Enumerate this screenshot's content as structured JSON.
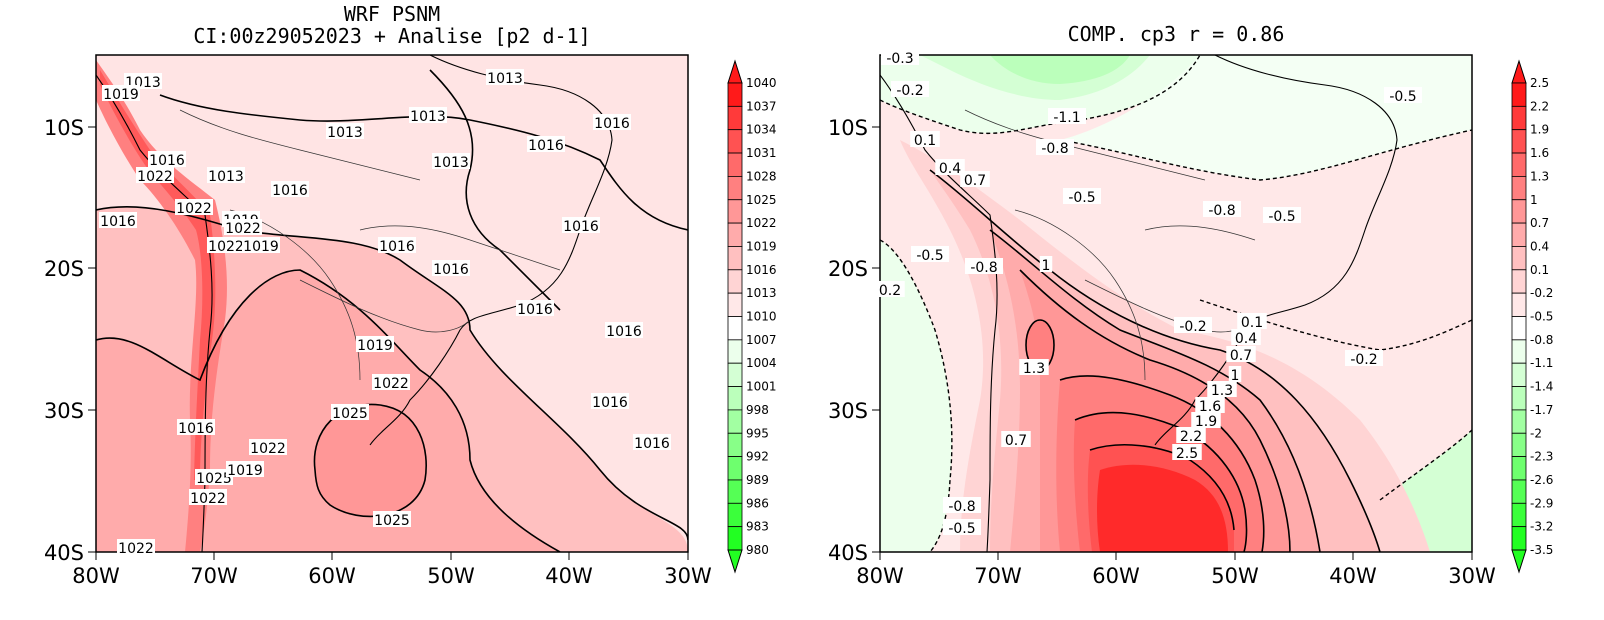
{
  "left_map": {
    "title_line1": "WRF PSNM",
    "title_line2": "CI:00z29052023 + Analise  [p2 d-1]",
    "x_ticks": [
      "80W",
      "70W",
      "60W",
      "50W",
      "40W",
      "30W"
    ],
    "y_ticks": [
      "10S",
      "20S",
      "30S",
      "40S"
    ],
    "colorbar": [
      "1040",
      "1037",
      "1034",
      "1031",
      "1028",
      "1025",
      "1022",
      "1019",
      "1016",
      "1013",
      "1010",
      "1007",
      "1004",
      "1001",
      "998",
      "995",
      "992",
      "989",
      "986",
      "983",
      "980"
    ],
    "colorbar_colors": [
      "#ff1a1a",
      "#ff3a3a",
      "#ff5252",
      "#ff6a6a",
      "#ff8080",
      "#ff9797",
      "#ffabab",
      "#ffc0c0",
      "#ffd4d4",
      "#ffe8e8",
      "#ffffff",
      "#ecffec",
      "#d4ffd4",
      "#bbffbb",
      "#a2ffa2",
      "#88ff88",
      "#6eff6e",
      "#55ff55",
      "#3bff3b",
      "#22ff22"
    ],
    "contour_labels": [
      {
        "text": "1013"
      },
      {
        "text": "1019"
      },
      {
        "text": "1016"
      },
      {
        "text": "1022"
      },
      {
        "text": "1013"
      },
      {
        "text": "1016"
      },
      {
        "text": "1013"
      },
      {
        "text": "1013"
      },
      {
        "text": "1013"
      },
      {
        "text": "1016"
      },
      {
        "text": "1016"
      },
      {
        "text": "1013"
      },
      {
        "text": "1022"
      },
      {
        "text": "1019"
      },
      {
        "text": "1022"
      },
      {
        "text": "1022"
      },
      {
        "text": "1019"
      },
      {
        "text": "1016"
      },
      {
        "text": "1016"
      },
      {
        "text": "1016"
      },
      {
        "text": "1016"
      },
      {
        "text": "1016"
      },
      {
        "text": "1016"
      },
      {
        "text": "1019"
      },
      {
        "text": "1022"
      },
      {
        "text": "1025"
      },
      {
        "text": "1016"
      },
      {
        "text": "1022"
      },
      {
        "text": "1025"
      },
      {
        "text": "1019"
      },
      {
        "text": "1022"
      },
      {
        "text": "1025"
      },
      {
        "text": "1022"
      },
      {
        "text": "1016"
      },
      {
        "text": "1016"
      }
    ]
  },
  "right_map": {
    "title": "COMP. cp3  r =  0.86",
    "x_ticks": [
      "80W",
      "70W",
      "60W",
      "50W",
      "40W",
      "30W"
    ],
    "y_ticks": [
      "10S",
      "20S",
      "30S",
      "40S"
    ],
    "colorbar": [
      "2.5",
      "2.2",
      "1.9",
      "1.6",
      "1.3",
      "1",
      "0.7",
      "0.4",
      "0.1",
      "-0.2",
      "-0.5",
      "-0.8",
      "-1.1",
      "-1.4",
      "-1.7",
      "-2",
      "-2.3",
      "-2.6",
      "-2.9",
      "-3.2",
      "-3.5"
    ],
    "colorbar_colors": [
      "#ff1a1a",
      "#ff3a3a",
      "#ff5252",
      "#ff6a6a",
      "#ff8080",
      "#ff9797",
      "#ffabab",
      "#ffc0c0",
      "#ffd4d4",
      "#ffe8e8",
      "#ffffff",
      "#ecffec",
      "#d4ffd4",
      "#bbffbb",
      "#a2ffa2",
      "#88ff88",
      "#6eff6e",
      "#55ff55",
      "#3bff3b",
      "#22ff22"
    ],
    "contour_labels": [
      {
        "text": "-0.3"
      },
      {
        "text": "-0.2"
      },
      {
        "text": "-1.1"
      },
      {
        "text": "-0.5"
      },
      {
        "text": "0.1"
      },
      {
        "text": "-0.8"
      },
      {
        "text": "0.4"
      },
      {
        "text": "0.7"
      },
      {
        "text": "-0.5"
      },
      {
        "text": "-0.8"
      },
      {
        "text": "-0.5"
      },
      {
        "text": "-0.5"
      },
      {
        "text": "-0.8"
      },
      {
        "text": "1"
      },
      {
        "text": "0.2"
      },
      {
        "text": "-0.2"
      },
      {
        "text": "0.1"
      },
      {
        "text": "0.4"
      },
      {
        "text": "0.7"
      },
      {
        "text": "-0.2"
      },
      {
        "text": "1.3"
      },
      {
        "text": "1"
      },
      {
        "text": "1.3"
      },
      {
        "text": "1.6"
      },
      {
        "text": "1.9"
      },
      {
        "text": "2.2"
      },
      {
        "text": "0.7"
      },
      {
        "text": "2.5"
      },
      {
        "text": "-0.8"
      },
      {
        "text": "-0.5"
      }
    ]
  }
}
